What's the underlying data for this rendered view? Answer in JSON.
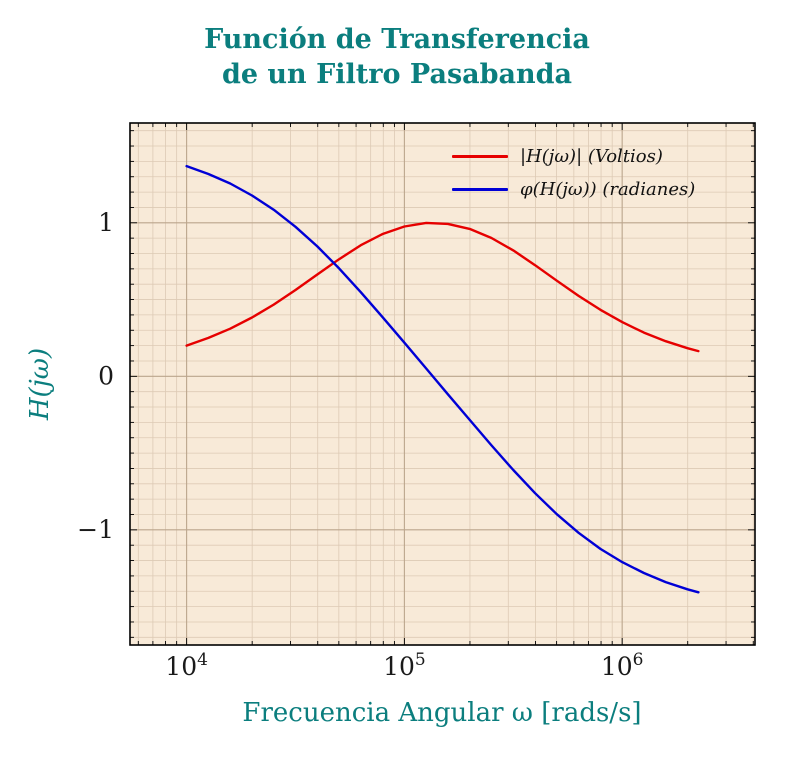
{
  "title": {
    "line1": "Función de Transferencia",
    "line2": "de un Filtro Pasabanda"
  },
  "colors": {
    "accent_teal": "#0b7e7e",
    "magnitude_red": "#e60000",
    "phase_blue": "#0000d6",
    "plot_background": "#f8ead8",
    "grid_minor": "#ddcab5",
    "grid_major": "#bba58c",
    "axis_frame": "#000000"
  },
  "legend": [
    {
      "id": "magnitude",
      "label": "|H(jω)| (Voltios)",
      "color": "#e60000"
    },
    {
      "id": "phase",
      "label": "φ(H(jω)) (radianes)",
      "color": "#0000d6"
    }
  ],
  "chart_data": {
    "type": "line",
    "title": "Función de Transferencia de un Filtro Pasabanda",
    "xlabel": "Frecuencia Angular ω [rads/s]",
    "ylabel": "H(jω)",
    "xscale": "log",
    "grid": "both",
    "legend_position": "top-right",
    "xlim_log10": [
      3.74,
      6.61
    ],
    "ylim": [
      -1.75,
      1.65
    ],
    "x_major_ticks_log10": [
      4,
      5,
      6
    ],
    "x_tick_labels": [
      "10^4",
      "10^5",
      "10^6"
    ],
    "y_ticks": [
      1,
      0,
      -1
    ],
    "y_tick_labels": [
      "1",
      "0",
      "−1"
    ],
    "x_log10": [
      4.0,
      4.1,
      4.2,
      4.3,
      4.4,
      4.5,
      4.6,
      4.7,
      4.8,
      4.9,
      5.0,
      5.1,
      5.2,
      5.3,
      5.4,
      5.5,
      5.6,
      5.7,
      5.8,
      5.9,
      6.0,
      6.1,
      6.2,
      6.3,
      6.35
    ],
    "series": [
      {
        "id": "magnitude",
        "name": "|H(jω)| (Voltios)",
        "color": "#e60000",
        "values": [
          0.2,
          0.25,
          0.31,
          0.383,
          0.467,
          0.562,
          0.663,
          0.763,
          0.854,
          0.927,
          0.976,
          0.999,
          0.993,
          0.96,
          0.901,
          0.82,
          0.724,
          0.623,
          0.524,
          0.433,
          0.353,
          0.285,
          0.229,
          0.183,
          0.164
        ]
      },
      {
        "id": "phase",
        "name": "φ(H(jω)) (radianes)",
        "color": "#0000d6",
        "values": [
          1.369,
          1.318,
          1.256,
          1.178,
          1.085,
          0.974,
          0.846,
          0.703,
          0.548,
          0.385,
          0.219,
          0.051,
          -0.117,
          -0.284,
          -0.45,
          -0.61,
          -0.761,
          -0.898,
          -1.019,
          -1.124,
          -1.21,
          -1.281,
          -1.34,
          -1.387,
          -1.407
        ]
      }
    ]
  }
}
